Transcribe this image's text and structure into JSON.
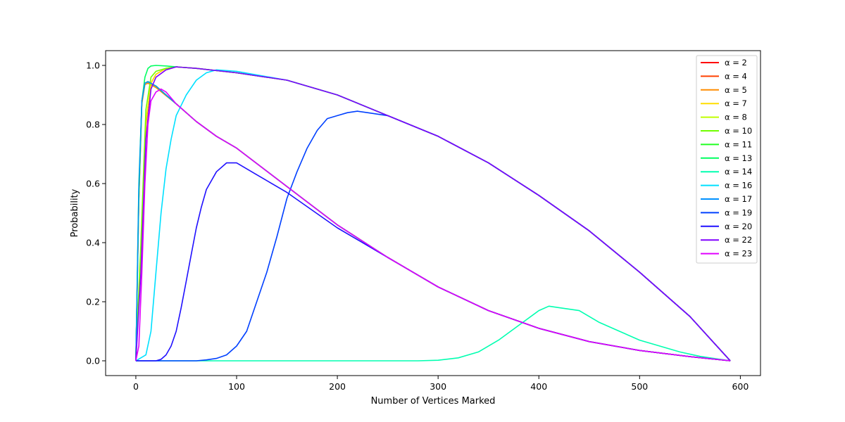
{
  "chart_data": {
    "type": "line",
    "title": "",
    "xlabel": "Number of Vertices Marked",
    "ylabel": "Probability",
    "xlim": [
      -30,
      620
    ],
    "ylim": [
      -0.05,
      1.05
    ],
    "x_ticks": [
      0,
      100,
      200,
      300,
      400,
      500,
      600
    ],
    "y_ticks": [
      0.0,
      0.2,
      0.4,
      0.6,
      0.8,
      1.0
    ],
    "x_tick_labels": [
      "0",
      "100",
      "200",
      "300",
      "400",
      "500",
      "600"
    ],
    "y_tick_labels": [
      "0.0",
      "0.2",
      "0.4",
      "0.6",
      "0.8",
      "1.0"
    ],
    "grid": false,
    "legend_position": "top-right",
    "series": [
      {
        "name": "α = 2",
        "color": "#ff0000",
        "x": [
          0,
          3,
          6,
          9,
          12,
          20,
          40,
          60,
          80,
          100,
          150,
          200,
          250,
          300,
          350,
          400,
          450,
          500,
          550,
          590
        ],
        "y": [
          0,
          0.55,
          0.88,
          0.94,
          0.945,
          0.93,
          0.87,
          0.81,
          0.76,
          0.72,
          0.59,
          0.46,
          0.35,
          0.25,
          0.17,
          0.11,
          0.065,
          0.035,
          0.014,
          0
        ]
      },
      {
        "name": "α = 4",
        "color": "#ff4000",
        "x": [
          0,
          5,
          10,
          15,
          20,
          30,
          40,
          60,
          100,
          150,
          200,
          250,
          300,
          350,
          400,
          450,
          500,
          550,
          590
        ],
        "y": [
          0,
          0.35,
          0.8,
          0.94,
          0.97,
          0.99,
          0.995,
          0.99,
          0.975,
          0.95,
          0.9,
          0.83,
          0.76,
          0.67,
          0.56,
          0.44,
          0.3,
          0.15,
          0
        ]
      },
      {
        "name": "α = 5",
        "color": "#ff8c00",
        "x": [
          0,
          3,
          6,
          9,
          12,
          20,
          40,
          60,
          80,
          100,
          150,
          200,
          250,
          300,
          350,
          400,
          450,
          500,
          550,
          590
        ],
        "y": [
          0,
          0.54,
          0.87,
          0.935,
          0.94,
          0.925,
          0.87,
          0.81,
          0.76,
          0.72,
          0.59,
          0.46,
          0.35,
          0.25,
          0.17,
          0.11,
          0.065,
          0.035,
          0.014,
          0
        ]
      },
      {
        "name": "α = 7",
        "color": "#ffdd00",
        "x": [
          0,
          5,
          10,
          15,
          20,
          30,
          40,
          60,
          100,
          150,
          200,
          250,
          300,
          350,
          400,
          450,
          500,
          550,
          590
        ],
        "y": [
          0,
          0.36,
          0.81,
          0.94,
          0.97,
          0.99,
          0.995,
          0.99,
          0.975,
          0.95,
          0.9,
          0.83,
          0.76,
          0.67,
          0.56,
          0.44,
          0.3,
          0.15,
          0
        ]
      },
      {
        "name": "α = 8",
        "color": "#c0ff00",
        "x": [
          0,
          3,
          6,
          9,
          12,
          20,
          40,
          60,
          80,
          100,
          150,
          200,
          250,
          300,
          350,
          400,
          450,
          500,
          550,
          590
        ],
        "y": [
          0,
          0.55,
          0.88,
          0.94,
          0.945,
          0.93,
          0.87,
          0.81,
          0.76,
          0.72,
          0.59,
          0.46,
          0.35,
          0.25,
          0.17,
          0.11,
          0.065,
          0.035,
          0.014,
          0
        ]
      },
      {
        "name": "α = 10",
        "color": "#70ff00",
        "x": [
          0,
          5,
          10,
          15,
          20,
          30,
          40,
          60,
          100,
          150,
          200,
          250,
          300,
          350,
          400,
          450,
          500,
          550,
          590
        ],
        "y": [
          0,
          0.4,
          0.85,
          0.96,
          0.98,
          0.99,
          0.995,
          0.99,
          0.975,
          0.95,
          0.9,
          0.83,
          0.76,
          0.67,
          0.56,
          0.44,
          0.3,
          0.15,
          0
        ]
      },
      {
        "name": "α = 11",
        "color": "#20ff20",
        "x": [
          0,
          3,
          6,
          9,
          12,
          20,
          40,
          60,
          80,
          100,
          150,
          200,
          250,
          300,
          350,
          400,
          450,
          500,
          550,
          590
        ],
        "y": [
          0,
          0.56,
          0.88,
          0.94,
          0.945,
          0.93,
          0.87,
          0.81,
          0.76,
          0.72,
          0.59,
          0.46,
          0.35,
          0.25,
          0.17,
          0.11,
          0.065,
          0.035,
          0.014,
          0
        ]
      },
      {
        "name": "α = 13",
        "color": "#00ff60",
        "x": [
          0,
          3,
          6,
          9,
          12,
          15,
          20,
          30,
          40,
          60,
          100,
          150,
          200,
          250,
          300,
          350,
          400,
          450,
          500,
          550,
          590
        ],
        "y": [
          0,
          0.6,
          0.88,
          0.96,
          0.99,
          0.998,
          1.0,
          0.998,
          0.995,
          0.99,
          0.975,
          0.95,
          0.9,
          0.83,
          0.76,
          0.67,
          0.56,
          0.44,
          0.3,
          0.15,
          0
        ]
      },
      {
        "name": "α = 14",
        "color": "#00ffb0",
        "x": [
          0,
          100,
          200,
          280,
          300,
          320,
          340,
          360,
          380,
          400,
          410,
          420,
          440,
          460,
          480,
          500,
          520,
          540,
          560,
          580,
          590
        ],
        "y": [
          0,
          0,
          0,
          0,
          0.002,
          0.01,
          0.03,
          0.07,
          0.12,
          0.17,
          0.185,
          0.18,
          0.17,
          0.13,
          0.1,
          0.07,
          0.05,
          0.03,
          0.015,
          0.005,
          0
        ]
      },
      {
        "name": "α = 16",
        "color": "#00e0ff",
        "x": [
          0,
          10,
          15,
          20,
          25,
          30,
          35,
          40,
          50,
          60,
          70,
          80,
          100,
          150,
          200,
          250,
          300,
          350,
          400,
          450,
          500,
          550,
          590
        ],
        "y": [
          0,
          0.02,
          0.1,
          0.3,
          0.5,
          0.65,
          0.75,
          0.83,
          0.9,
          0.95,
          0.975,
          0.985,
          0.98,
          0.95,
          0.9,
          0.83,
          0.76,
          0.67,
          0.56,
          0.44,
          0.3,
          0.15,
          0
        ]
      },
      {
        "name": "α = 17",
        "color": "#0090ff",
        "x": [
          0,
          3,
          6,
          9,
          12,
          20,
          40,
          60,
          80,
          100,
          150,
          200,
          250,
          300,
          350,
          400,
          450,
          500,
          550,
          590
        ],
        "y": [
          0,
          0.58,
          0.88,
          0.94,
          0.945,
          0.93,
          0.87,
          0.81,
          0.76,
          0.72,
          0.59,
          0.46,
          0.35,
          0.25,
          0.17,
          0.11,
          0.065,
          0.035,
          0.014,
          0
        ]
      },
      {
        "name": "α = 19",
        "color": "#0040ff",
        "x": [
          0,
          60,
          70,
          80,
          90,
          100,
          110,
          120,
          130,
          140,
          150,
          160,
          170,
          180,
          190,
          200,
          210,
          220,
          230,
          250,
          300,
          350,
          400,
          450,
          500,
          550,
          590
        ],
        "y": [
          0,
          0,
          0.003,
          0.008,
          0.02,
          0.05,
          0.1,
          0.2,
          0.3,
          0.42,
          0.55,
          0.64,
          0.72,
          0.78,
          0.82,
          0.83,
          0.84,
          0.845,
          0.84,
          0.83,
          0.76,
          0.67,
          0.56,
          0.44,
          0.3,
          0.15,
          0
        ]
      },
      {
        "name": "α = 20",
        "color": "#2010ff",
        "x": [
          0,
          20,
          25,
          30,
          35,
          40,
          45,
          50,
          55,
          60,
          65,
          70,
          80,
          90,
          100,
          120,
          150,
          200,
          250,
          300,
          350,
          400,
          450,
          500,
          550,
          590
        ],
        "y": [
          0,
          0,
          0.005,
          0.02,
          0.05,
          0.1,
          0.18,
          0.27,
          0.36,
          0.45,
          0.52,
          0.58,
          0.64,
          0.67,
          0.67,
          0.63,
          0.57,
          0.45,
          0.35,
          0.25,
          0.17,
          0.11,
          0.065,
          0.035,
          0.014,
          0
        ]
      },
      {
        "name": "α = 22",
        "color": "#8000ff",
        "x": [
          0,
          5,
          10,
          15,
          20,
          30,
          40,
          60,
          100,
          150,
          200,
          250,
          300,
          350,
          400,
          450,
          500,
          550,
          590
        ],
        "y": [
          0,
          0.3,
          0.75,
          0.92,
          0.96,
          0.985,
          0.995,
          0.99,
          0.975,
          0.95,
          0.9,
          0.83,
          0.76,
          0.67,
          0.56,
          0.44,
          0.3,
          0.15,
          0
        ]
      },
      {
        "name": "α = 23",
        "color": "#e000ff",
        "x": [
          0,
          3,
          6,
          9,
          12,
          15,
          20,
          25,
          30,
          40,
          60,
          80,
          100,
          150,
          200,
          250,
          300,
          350,
          400,
          450,
          500,
          550,
          590
        ],
        "y": [
          0,
          0.05,
          0.3,
          0.6,
          0.8,
          0.88,
          0.91,
          0.92,
          0.91,
          0.87,
          0.81,
          0.76,
          0.72,
          0.59,
          0.46,
          0.35,
          0.25,
          0.17,
          0.11,
          0.065,
          0.035,
          0.014,
          0
        ]
      }
    ]
  }
}
